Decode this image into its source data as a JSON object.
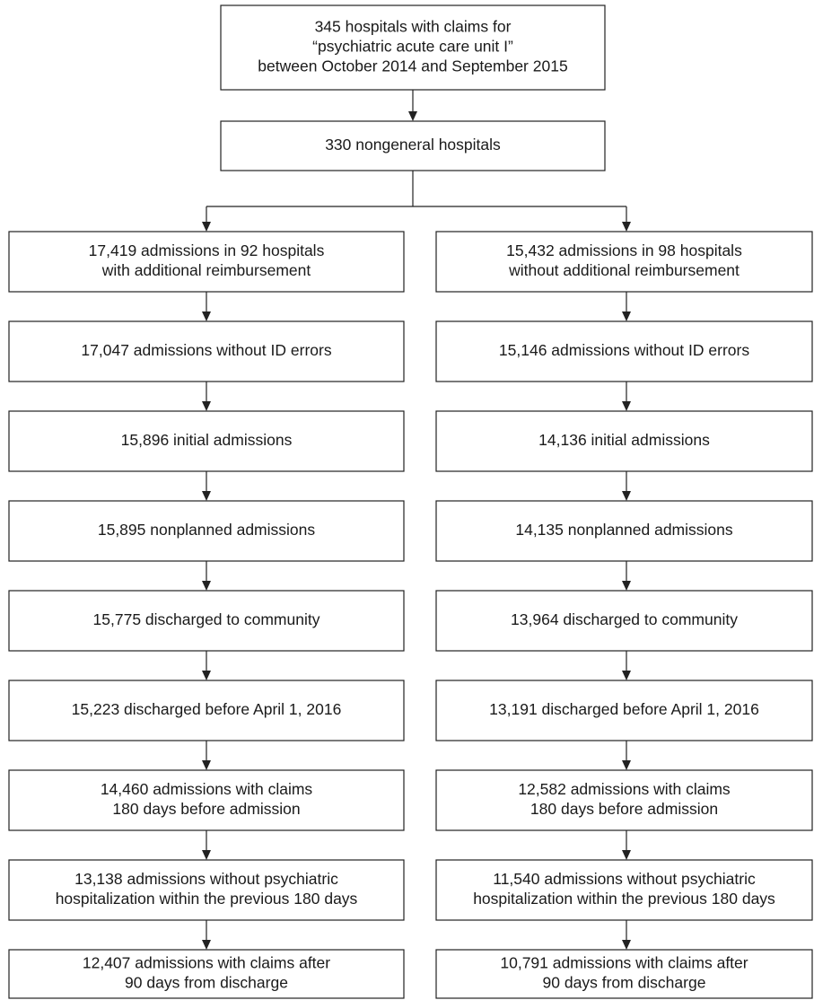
{
  "top": [
    {
      "lines": [
        "345 hospitals with claims for",
        "“psychiatric acute care unit I”",
        "between October 2014 and September 2015"
      ]
    },
    {
      "lines": [
        "330 nongeneral hospitals"
      ]
    }
  ],
  "left": [
    {
      "lines": [
        "17,419 admissions in 92 hospitals",
        "with additional reimbursement"
      ]
    },
    {
      "lines": [
        "17,047 admissions without ID errors"
      ]
    },
    {
      "lines": [
        "15,896 initial admissions"
      ]
    },
    {
      "lines": [
        "15,895 nonplanned admissions"
      ]
    },
    {
      "lines": [
        "15,775 discharged to community"
      ]
    },
    {
      "lines": [
        "15,223 discharged before April 1, 2016"
      ]
    },
    {
      "lines": [
        "14,460 admissions with claims",
        "180 days before admission"
      ]
    },
    {
      "lines": [
        "13,138 admissions without psychiatric",
        "hospitalization within the previous 180 days"
      ]
    },
    {
      "lines": [
        "12,407 admissions with claims after",
        "90 days from discharge"
      ]
    }
  ],
  "right": [
    {
      "lines": [
        "15,432 admissions in 98 hospitals",
        "without additional reimbursement"
      ]
    },
    {
      "lines": [
        "15,146 admissions without ID errors"
      ]
    },
    {
      "lines": [
        "14,136 initial admissions"
      ]
    },
    {
      "lines": [
        "14,135 nonplanned admissions"
      ]
    },
    {
      "lines": [
        "13,964 discharged to community"
      ]
    },
    {
      "lines": [
        "13,191 discharged before April 1, 2016"
      ]
    },
    {
      "lines": [
        "12,582 admissions with claims",
        "180 days before admission"
      ]
    },
    {
      "lines": [
        "11,540 admissions without psychiatric",
        "hospitalization within the previous 180 days"
      ]
    },
    {
      "lines": [
        "10,791 admissions with claims after",
        "90 days from discharge"
      ]
    }
  ]
}
